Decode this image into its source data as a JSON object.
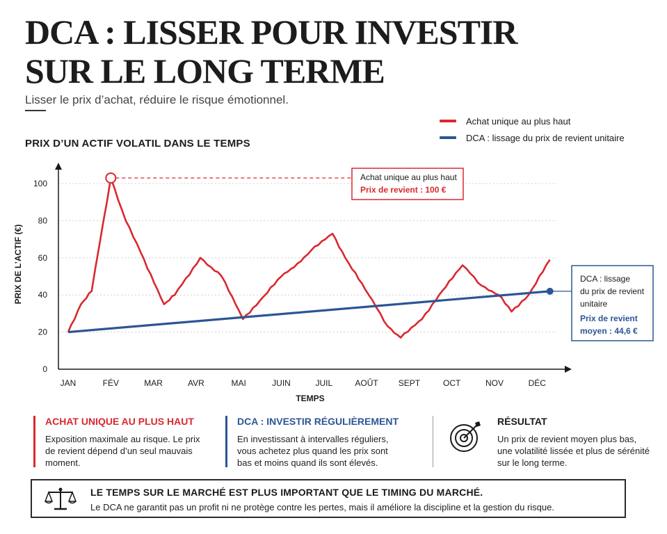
{
  "header": {
    "title": "DCA : LISSER POUR INVESTIR SUR LE LONG TERME",
    "subtitle": "Lisser le prix d’achat, réduire le risque émotionnel.",
    "chart_heading": "PRIX D’UN ACTIF VOLATIL DANS LE TEMPS"
  },
  "legend": [
    {
      "label": "Achat unique au plus haut",
      "color": "#d9282f"
    },
    {
      "label": "DCA : lissage du prix de revient unitaire",
      "color": "#2b5694"
    }
  ],
  "chart_data": {
    "type": "line",
    "x_labels": [
      "JAN",
      "FÉV",
      "MAR",
      "AVR",
      "MAI",
      "JUIN",
      "JUIL",
      "AOÛT",
      "SEPT",
      "OCT",
      "NOV",
      "DÉC"
    ],
    "xlabel": "TEMPS",
    "ylabel": "PRIX DE L’ACTIF (€)",
    "y_ticks": [
      0,
      20,
      40,
      60,
      80,
      100
    ],
    "ylim": [
      0,
      110
    ],
    "grid": "horizontal dotted",
    "series": [
      {
        "name": "Achat unique au plus haut",
        "color": "#d9282f",
        "points": [
          [
            0,
            20
          ],
          [
            0.3,
            35
          ],
          [
            0.55,
            42
          ],
          [
            1,
            103
          ],
          [
            1.35,
            80
          ],
          [
            1.7,
            63
          ],
          [
            2.25,
            35
          ],
          [
            2.5,
            40
          ],
          [
            3.1,
            60
          ],
          [
            3.6,
            50
          ],
          [
            4.1,
            27
          ],
          [
            4.5,
            37
          ],
          [
            5.0,
            50
          ],
          [
            5.3,
            55
          ],
          [
            5.7,
            64
          ],
          [
            6.2,
            73
          ],
          [
            6.5,
            60
          ],
          [
            7.05,
            40
          ],
          [
            7.5,
            23
          ],
          [
            7.8,
            17
          ],
          [
            8.3,
            27
          ],
          [
            8.7,
            40
          ],
          [
            9.25,
            56
          ],
          [
            9.7,
            45
          ],
          [
            10.1,
            40
          ],
          [
            10.4,
            31
          ],
          [
            10.8,
            40
          ],
          [
            11.3,
            59
          ]
        ]
      },
      {
        "name": "DCA : lissage du prix de revient unitaire",
        "color": "#2b5694",
        "points": [
          [
            0,
            20
          ],
          [
            11.3,
            42
          ]
        ]
      }
    ],
    "annotations": [
      {
        "title": "Achat unique au plus haut",
        "value_label": "Prix de revient : 100 €",
        "at": [
          1,
          103
        ],
        "color": "#d9282f"
      },
      {
        "title": "DCA : lissage du prix de revient unitaire",
        "value_label": "Prix de revient moyen : 44,6 €",
        "at": [
          11.3,
          42
        ],
        "color": "#2b5694"
      }
    ]
  },
  "callouts": {
    "red_title": "Achat unique au plus haut",
    "red_value": "Prix de revient : 100 €",
    "blue_title_1": "DCA : lissage",
    "blue_title_2": "du prix de revient",
    "blue_title_3": "unitaire",
    "blue_value_1": "Prix de revient",
    "blue_value_2": "moyen : 44,6 €"
  },
  "columns": [
    {
      "title": "ACHAT UNIQUE AU PLUS HAUT",
      "text": "Exposition maximale au risque. Le prix de revient dépend d’un seul mauvais moment."
    },
    {
      "title": "DCA : INVESTIR RÉGULIÈREMENT",
      "text": "En investissant à intervalles réguliers, vous achetez plus quand les prix sont bas et moins quand ils sont élevés."
    },
    {
      "title": "RÉSULTAT",
      "text": "Un prix de revient moyen plus bas, une volatilité lissée et plus de sérénité sur le long terme.",
      "icon": "target-icon"
    }
  ],
  "banner": {
    "headline": "LE TEMPS SUR LE MARCHÉ EST PLUS IMPORTANT QUE LE TIMING DU MARCHÉ.",
    "text": "Le DCA ne garantit pas un profit ni ne protège contre les pertes, mais il améliore la discipline et la gestion du risque.",
    "icon": "scale-icon"
  }
}
